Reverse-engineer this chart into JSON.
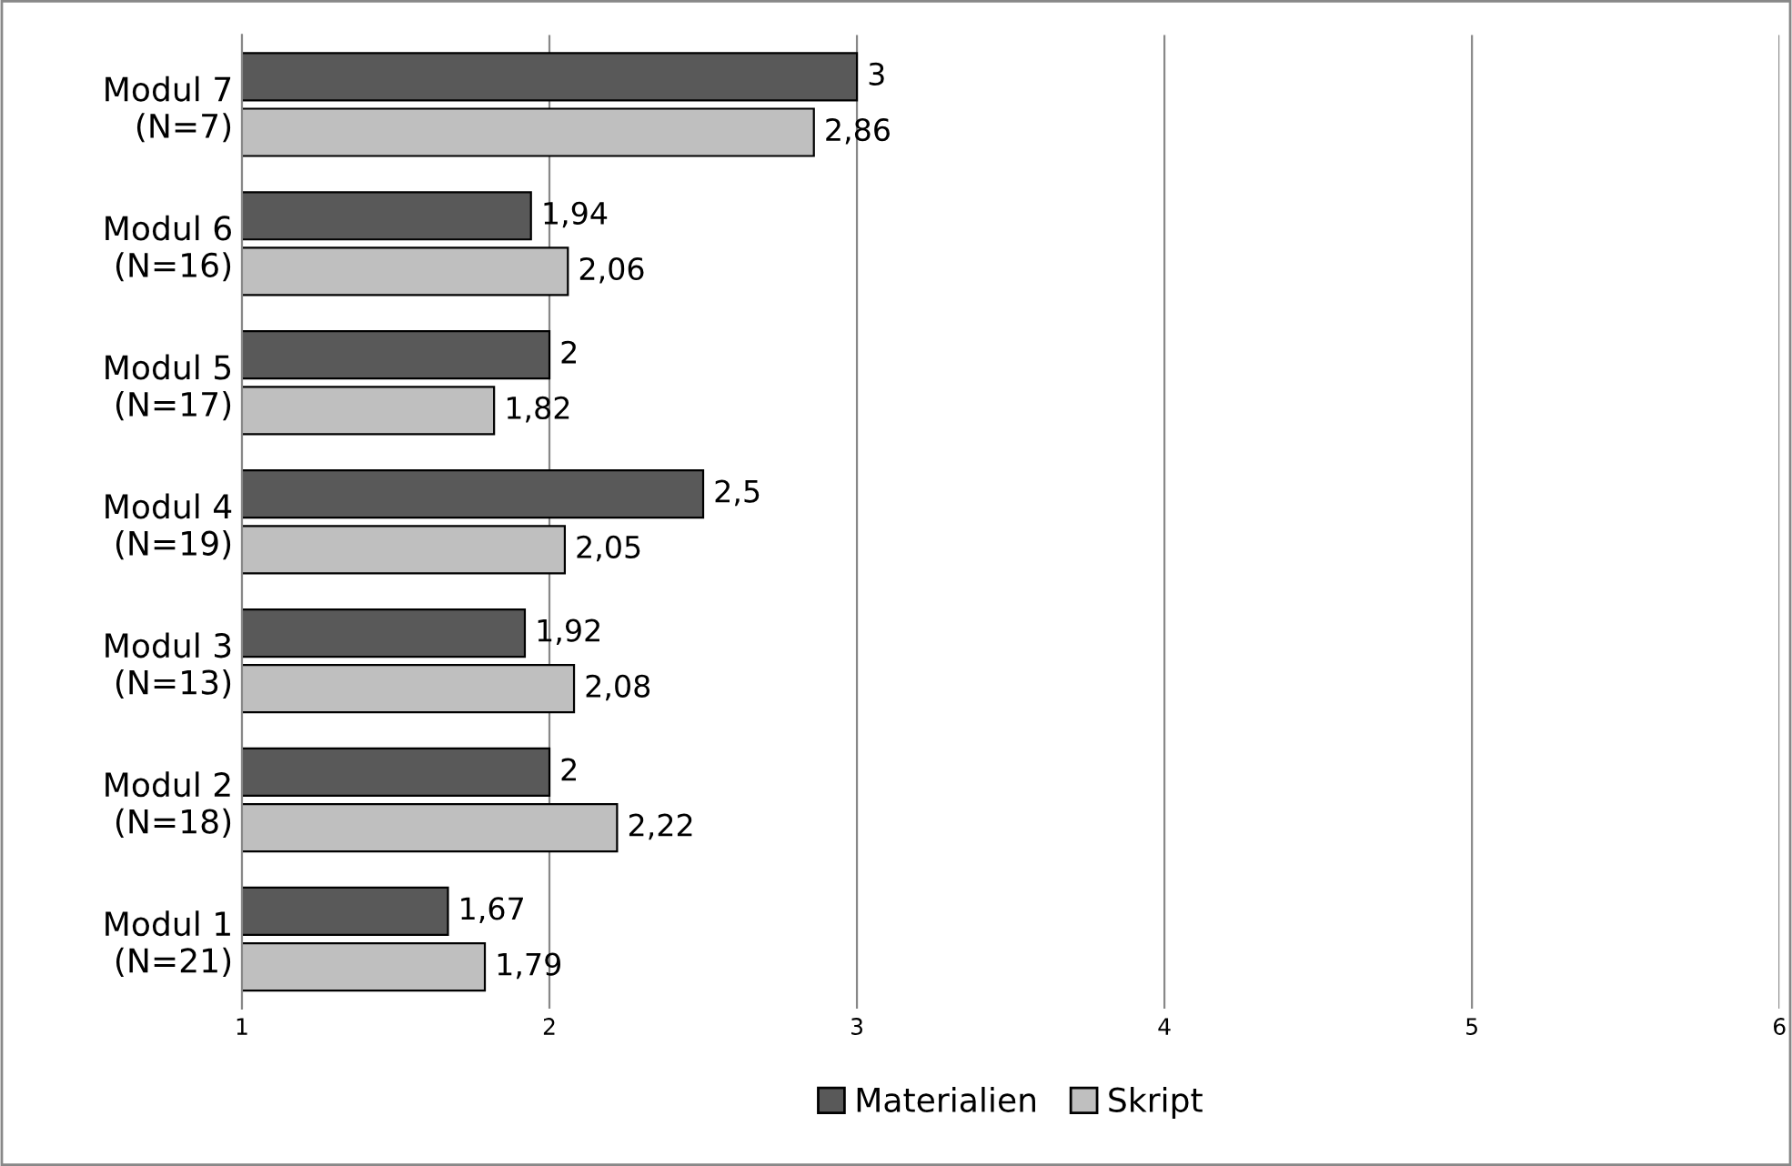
{
  "chart_data": {
    "type": "bar",
    "orientation": "horizontal",
    "categories": [
      "Modul 7\n(N=7)",
      "Modul 6\n(N=16)",
      "Modul 5\n(N=17)",
      "Modul 4\n(N=19)",
      "Modul 3\n(N=13)",
      "Modul 2\n(N=18)",
      "Modul 1\n(N=21)"
    ],
    "series": [
      {
        "name": "Materialien",
        "color": "#595959",
        "values": [
          3,
          1.94,
          2,
          2.5,
          1.92,
          2,
          1.67
        ],
        "value_labels": [
          "3",
          "1,94",
          "2",
          "2,5",
          "1,92",
          "2",
          "1,67"
        ]
      },
      {
        "name": "Skript",
        "color": "#bfbfbf",
        "values": [
          2.86,
          2.06,
          1.82,
          2.05,
          2.08,
          2.22,
          1.79
        ],
        "value_labels": [
          "2,86",
          "2,06",
          "1,82",
          "2,05",
          "2,08",
          "2,22",
          "1,79"
        ]
      }
    ],
    "xlim": [
      1,
      6
    ],
    "xticks": [
      1,
      2,
      3,
      4,
      5,
      6
    ],
    "grid": "x",
    "legend": "bottom"
  }
}
